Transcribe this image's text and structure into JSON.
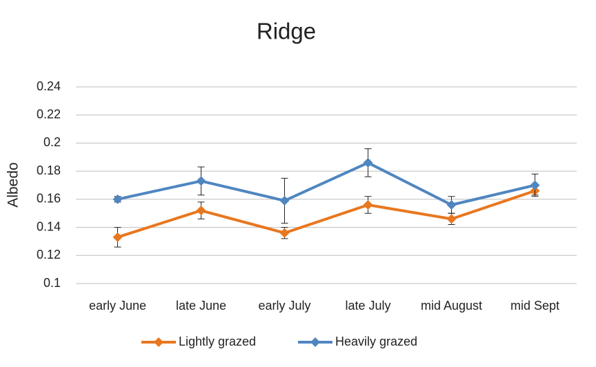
{
  "chart_data": {
    "type": "line",
    "title": "Ridge",
    "y_label": "Albedo",
    "categories": [
      "early June",
      "late June",
      "early July",
      "late July",
      "mid August",
      "mid Sept"
    ],
    "series": [
      {
        "name": "Lightly grazed",
        "color": "#e8771f",
        "values": [
          0.133,
          0.152,
          0.136,
          0.156,
          0.146,
          0.166
        ],
        "errors": [
          0.007,
          0.006,
          0.004,
          0.006,
          0.004,
          0.003
        ]
      },
      {
        "name": "Heavily grazed",
        "color": "#4f86c0",
        "values": [
          0.16,
          0.173,
          0.159,
          0.186,
          0.156,
          0.17
        ],
        "errors": [
          0.002,
          0.01,
          0.016,
          0.01,
          0.006,
          0.008
        ]
      }
    ],
    "ylim": [
      0.1,
      0.24
    ],
    "yticks": [
      0.1,
      0.12,
      0.14,
      0.16,
      0.18,
      0.2,
      0.22,
      0.24
    ],
    "grid": true,
    "legend": "bottom"
  }
}
